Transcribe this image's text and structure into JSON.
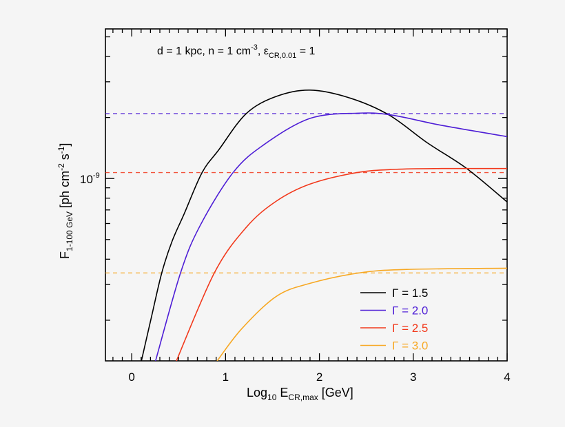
{
  "chart_data": {
    "type": "line",
    "annotation": {
      "main": "d = 1 kpc, n = 1 cm",
      "sup": "-3",
      "mid": ", ε",
      "sub": "CR,0.01",
      "end": " = 1"
    },
    "xlabel": {
      "pre": "Log",
      "sub1": "10",
      "mid": " E",
      "sub2": "CR,max",
      "post": " [GeV]"
    },
    "ylabel": {
      "pre": "F",
      "sub": "1-100 GeV",
      "mid": " [ph cm",
      "sup1": "-2",
      "mid2": " s",
      "sup2": "-1",
      "post": "]"
    },
    "xlim": [
      -0.28,
      4.0
    ],
    "ylim": [
      1.26e-10,
      5.47e-09
    ],
    "yscale": "log",
    "x_ticks": [
      "0",
      "1",
      "2",
      "3",
      "4"
    ],
    "y_tick_label": {
      "base": "10",
      "exp": "-9"
    },
    "legend_position": "bottom-right",
    "grid": false,
    "series": [
      {
        "name": "Γ = 1.5",
        "color": "#000000",
        "x": [
          0.1,
          0.21,
          0.32,
          0.43,
          0.56,
          0.75,
          0.93,
          1.22,
          1.54,
          1.9,
          2.32,
          2.74,
          3.15,
          3.57,
          4.0
        ],
        "y": [
          1.24e-10,
          2.07e-10,
          3.42e-10,
          4.9e-10,
          6.71e-10,
          1.07e-09,
          1.39e-09,
          2.09e-09,
          2.54e-09,
          2.73e-09,
          2.5e-09,
          2.06e-09,
          1.5e-09,
          1.12e-09,
          7.66e-10
        ],
        "asymptote": null
      },
      {
        "name": "Γ = 2.0",
        "color": "#4e1ed6",
        "x": [
          0.25,
          0.52,
          0.73,
          1.08,
          1.41,
          1.9,
          2.4,
          2.76,
          3.3,
          4.0
        ],
        "y": [
          1.24e-10,
          3.42e-10,
          5.87e-10,
          1.07e-09,
          1.47e-09,
          1.98e-09,
          2.1e-09,
          2.06e-09,
          1.83e-09,
          1.61e-09
        ],
        "asymptote": 2.09e-09
      },
      {
        "name": "Γ = 2.5",
        "color": "#f2391c",
        "x": [
          0.47,
          0.88,
          1.22,
          1.54,
          1.9,
          2.4,
          2.81,
          3.3,
          4.0
        ],
        "y": [
          1.24e-10,
          3.42e-10,
          5.74e-10,
          7.73e-10,
          9.39e-10,
          1.07e-09,
          1.11e-09,
          1.12e-09,
          1.12e-09
        ],
        "asymptote": 1.07e-09
      },
      {
        "name": "Γ = 3.0",
        "color": "#f7a823",
        "x": [
          0.9,
          1.17,
          1.54,
          1.9,
          2.42,
          2.93,
          4.0
        ],
        "y": [
          1.24e-10,
          1.81e-10,
          2.62e-10,
          3.04e-10,
          3.42e-10,
          3.56e-10,
          3.61e-10
        ],
        "asymptote": 3.42e-10
      }
    ]
  }
}
